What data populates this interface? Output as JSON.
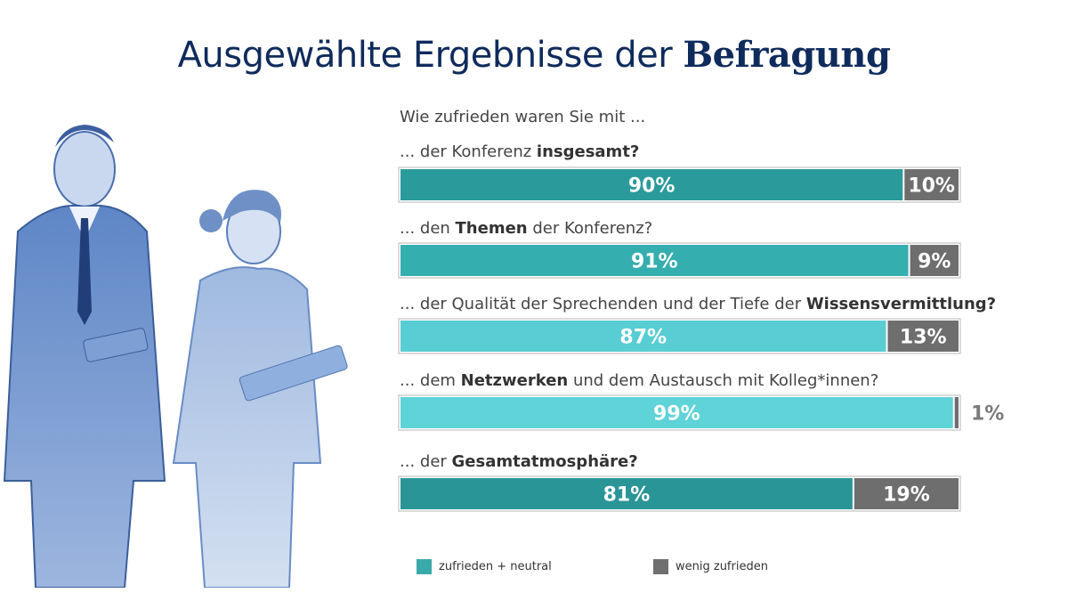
{
  "title": {
    "regular": "Ausgewählte Ergebnisse der",
    "bold": "Befragung"
  },
  "question": "Wie zufrieden waren Sie mit ...",
  "items": [
    {
      "pre": "... der Konferenz ",
      "bold": "insgesamt?",
      "post": ""
    },
    {
      "pre": "... den ",
      "bold": "Themen",
      "post": " der Konferenz?"
    },
    {
      "pre": "... der Qualität der Sprechenden und der Tiefe der ",
      "bold": "Wissensvermittlung?",
      "post": ""
    },
    {
      "pre": "... dem ",
      "bold": "Netzwerken",
      "post": " und dem Austausch mit Kolleg*innen?"
    },
    {
      "pre": "... der ",
      "bold": "Gesamtatmosphäre?",
      "post": ""
    }
  ],
  "legend": {
    "satisfied": "zufrieden + neutral",
    "dissatisfied": "wenig zufrieden"
  },
  "colors": {
    "title": "#0f2b5c",
    "satisfied": [
      "#2a9a9b",
      "#35aeb0",
      "#58cdd3",
      "#5ed3d8",
      "#2a9597"
    ],
    "dissatisfied": "#6e6e6e",
    "legend_satisfied": "#3aa9aa",
    "legend_dissatisfied": "#6f6f6f"
  },
  "chart_data": {
    "type": "bar",
    "orientation": "horizontal",
    "stacked": true,
    "unit": "%",
    "categories": [
      "der Konferenz insgesamt",
      "den Themen der Konferenz",
      "der Qualität der Sprechenden und der Tiefe der Wissensvermittlung",
      "dem Netzwerken und dem Austausch mit Kolleg*innen",
      "der Gesamtatmosphäre"
    ],
    "series": [
      {
        "name": "zufrieden + neutral",
        "values": [
          90,
          91,
          87,
          99,
          81
        ],
        "labels": [
          "90%",
          "91%",
          "87%",
          "99%",
          "81%"
        ]
      },
      {
        "name": "wenig zufrieden",
        "values": [
          10,
          9,
          13,
          1,
          19
        ],
        "labels": [
          "10%",
          "9%",
          "13%",
          "1%",
          "19%"
        ]
      }
    ],
    "xlim": [
      0,
      100
    ],
    "legend_position": "bottom"
  }
}
